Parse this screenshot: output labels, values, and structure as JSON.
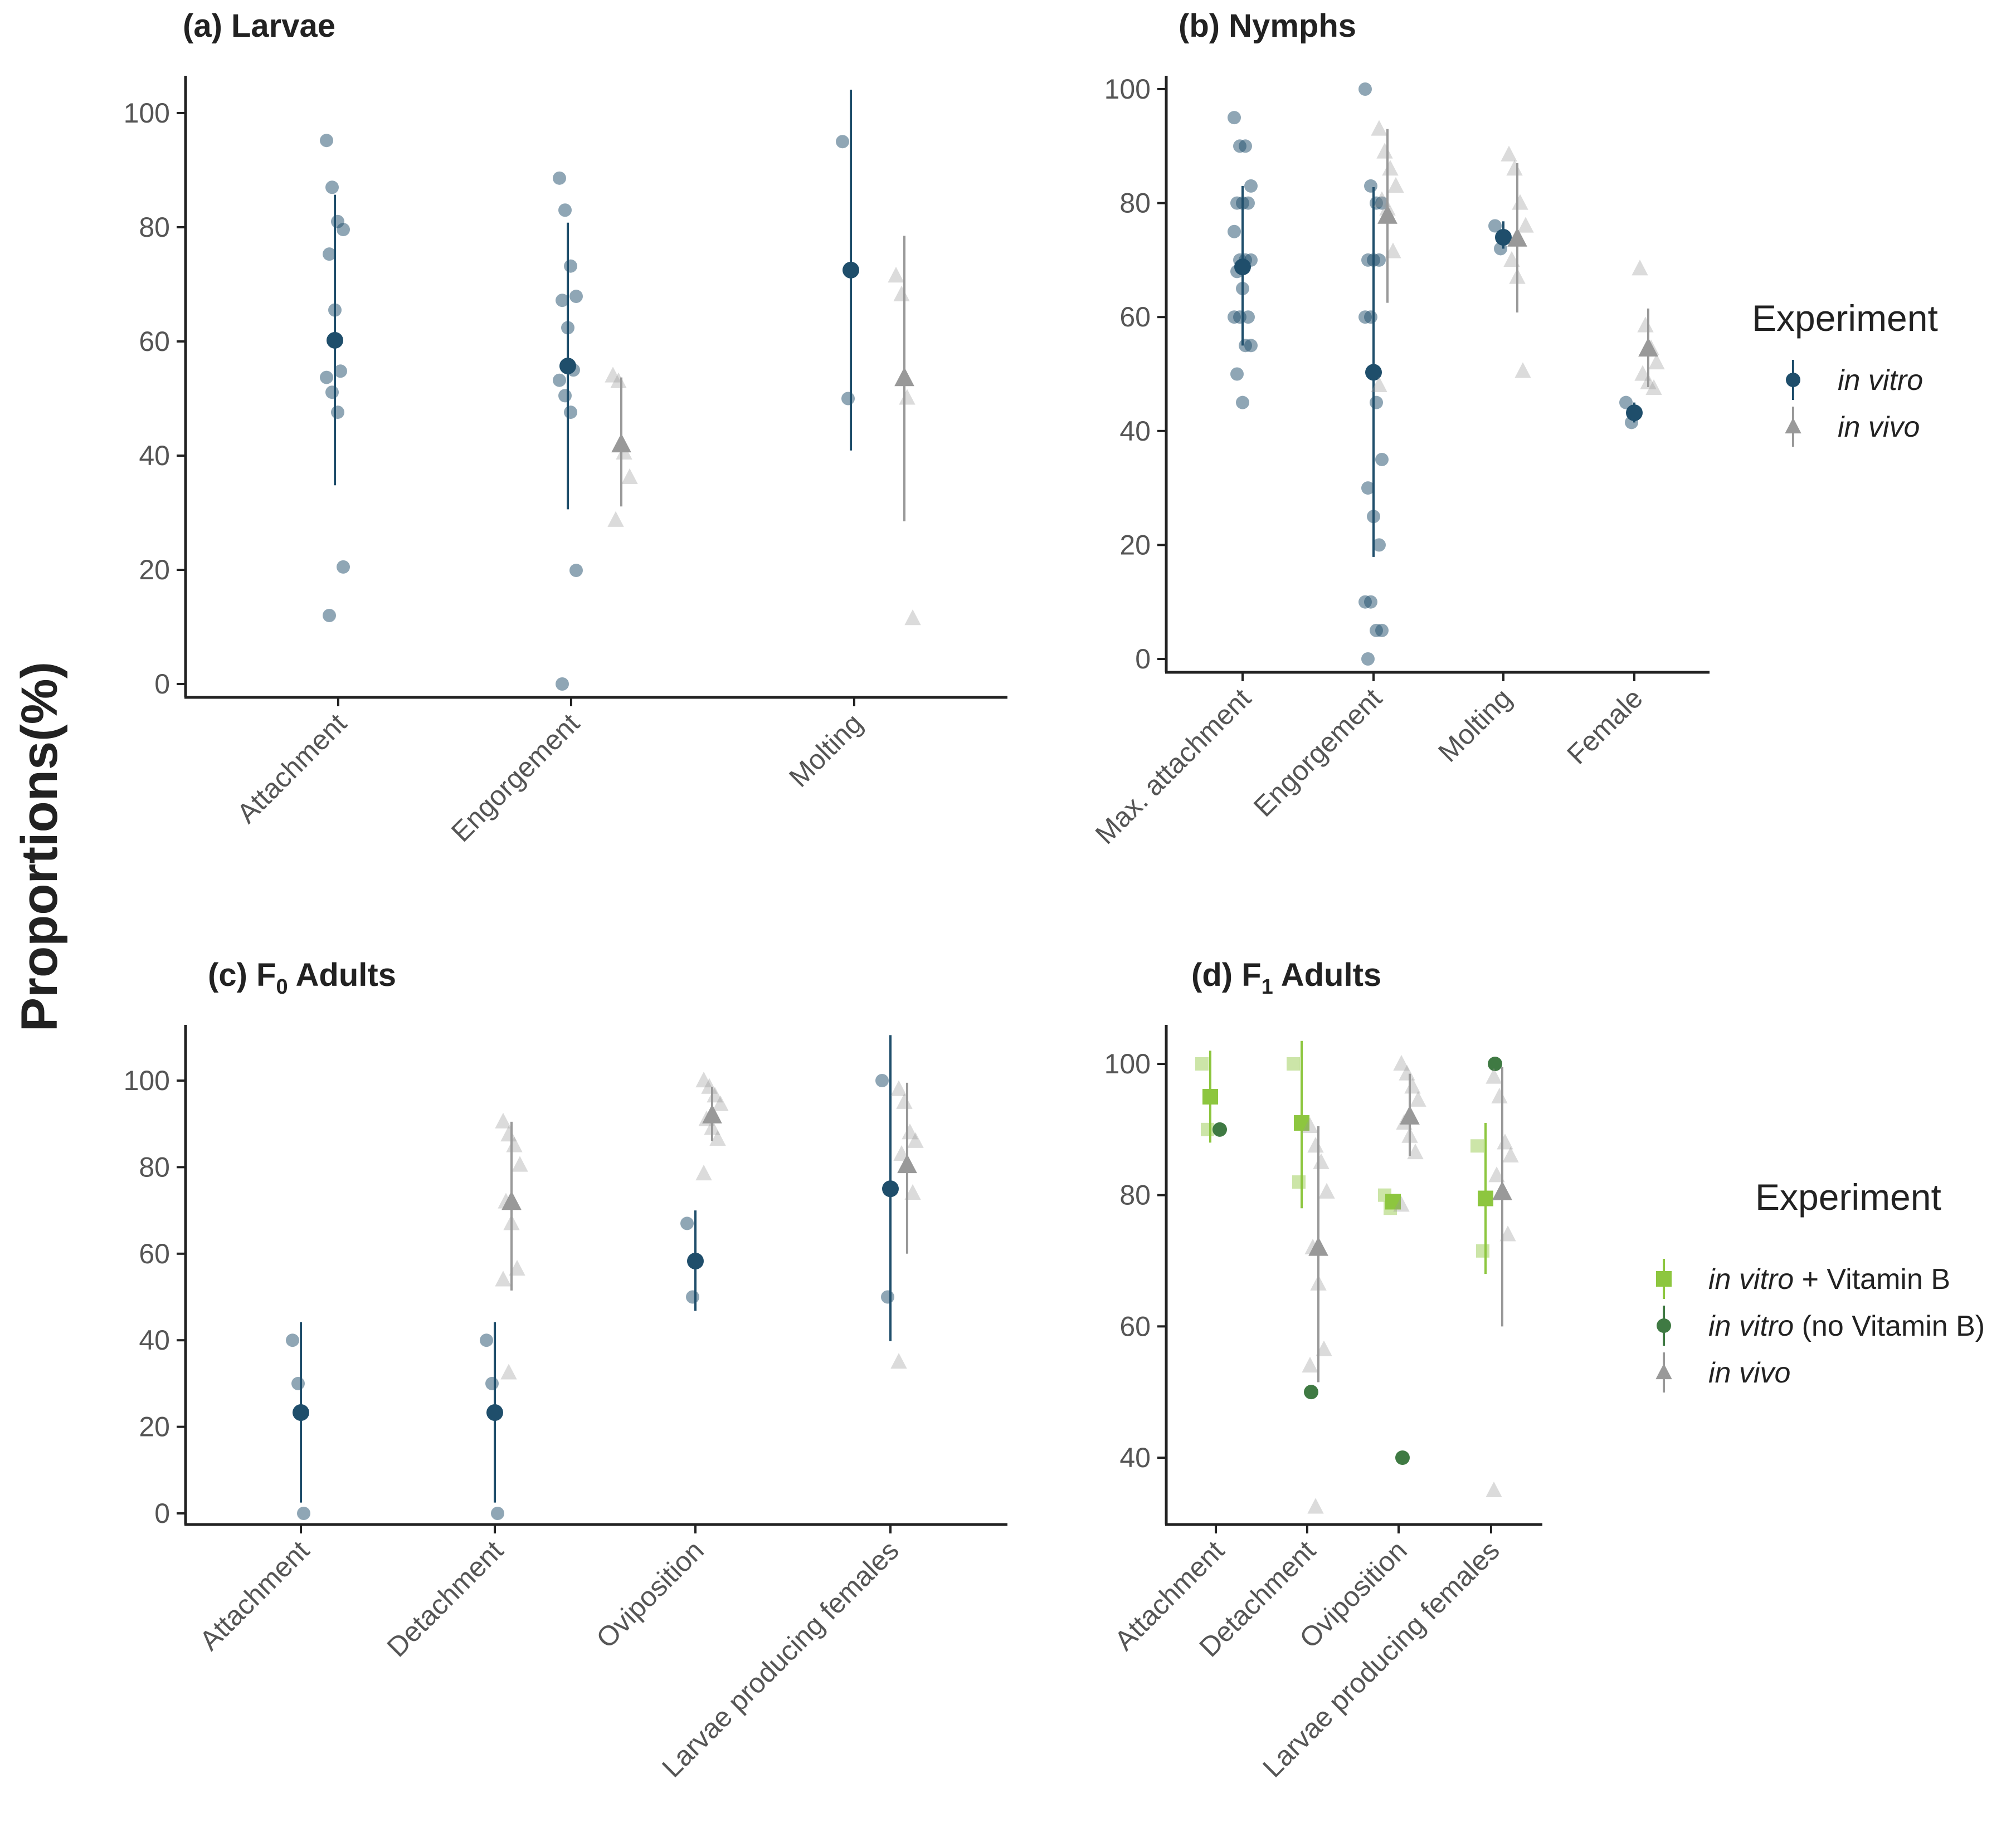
{
  "figure": {
    "ylabel": "Proportions(%)",
    "colors": {
      "in_vitro": "#1f4e6b",
      "in_vivo": "#999999",
      "in_vitro_vitB": "#8dc63f",
      "in_vitro_noVitB": "#3f7a43",
      "axis": "#222222",
      "tick_text": "#555555"
    },
    "legend1": {
      "title": "Experiment",
      "items": [
        {
          "key": "in_vitro",
          "label": "in vitro",
          "marker": "circle"
        },
        {
          "key": "in_vivo",
          "label": "in vivo",
          "marker": "triangle"
        }
      ]
    },
    "legend2": {
      "title": "Experiment",
      "items": [
        {
          "key": "in_vitro_vitB",
          "label_italic": "in vitro",
          "label_rest": " + Vitamin B",
          "marker": "square"
        },
        {
          "key": "in_vitro_noVitB",
          "label_italic": "in vitro",
          "label_rest": " (no Vitamin B)",
          "marker": "circle"
        },
        {
          "key": "in_vivo",
          "label_italic": "in vivo",
          "label_rest": "",
          "marker": "triangle"
        }
      ]
    }
  },
  "chart_data": [
    {
      "type": "scatter",
      "title": "(a) Larvae",
      "categories": [
        "Attachment",
        "Engorgement",
        "Molting"
      ],
      "ylim": [
        0,
        105
      ],
      "yticks": [
        0,
        20,
        40,
        60,
        80,
        100
      ],
      "series": [
        {
          "key": "in_vitro",
          "groups": [
            {
              "category": "Attachment",
              "mean": 60.2,
              "lo": 34.8,
              "hi": 85.7,
              "points": [
                95.2,
                87.0,
                81.0,
                79.6,
                75.3,
                65.5,
                54.8,
                53.7,
                51.1,
                47.6,
                20.5,
                12.0
              ]
            },
            {
              "category": "Engorgement",
              "mean": 55.7,
              "lo": 30.6,
              "hi": 80.8,
              "points": [
                88.6,
                83.0,
                73.2,
                67.9,
                67.2,
                62.4,
                55.0,
                53.2,
                50.5,
                47.6,
                19.9,
                0.0
              ]
            },
            {
              "category": "Molting",
              "mean": 72.5,
              "lo": 40.9,
              "hi": 104.1,
              "points": [
                95.0,
                50.0
              ]
            }
          ]
        },
        {
          "key": "in_vivo",
          "groups": [
            {
              "category": "Engorgement",
              "mean": 42.0,
              "lo": 31.1,
              "hi": 53.7,
              "points": [
                54.0,
                53.0,
                40.5,
                36.2,
                28.7
              ]
            },
            {
              "category": "Molting",
              "mean": 53.6,
              "lo": 28.5,
              "hi": 78.5,
              "points": [
                71.5,
                68.2,
                50.1,
                11.5
              ]
            }
          ]
        }
      ]
    },
    {
      "type": "scatter",
      "title": "(b) Nymphs",
      "categories": [
        "Max. attachment",
        "Engorgement",
        "Molting",
        "Female"
      ],
      "ylim": [
        -2,
        102
      ],
      "yticks": [
        0,
        20,
        40,
        60,
        80,
        100
      ],
      "series": [
        {
          "key": "in_vitro",
          "groups": [
            {
              "category": "Max. attachment",
              "mean": 68.8,
              "lo": 55.0,
              "hi": 83.0,
              "points": [
                95,
                90,
                90,
                83,
                80,
                80,
                80,
                75,
                70,
                70,
                70,
                68,
                65,
                60,
                60,
                60,
                55,
                55,
                50,
                45
              ]
            },
            {
              "category": "Engorgement",
              "mean": 50.3,
              "lo": 17.9,
              "hi": 82.8,
              "points": [
                100,
                83,
                80,
                80,
                70,
                70,
                70,
                60,
                60,
                45,
                35,
                30,
                25,
                20,
                10,
                10,
                5,
                5,
                0
              ]
            },
            {
              "category": "Molting",
              "mean": 74.0,
              "lo": 72.0,
              "hi": 76.8,
              "points": [
                76.0,
                72.0
              ]
            },
            {
              "category": "Female",
              "mean": 43.2,
              "lo": 41.5,
              "hi": 45.0,
              "points": [
                45.0,
                41.5
              ]
            }
          ]
        },
        {
          "key": "in_vivo",
          "groups": [
            {
              "category": "Engorgement",
              "mean": 77.8,
              "lo": 62.5,
              "hi": 93.0,
              "points": [
                93.0,
                89.0,
                86.0,
                83.0,
                80.5,
                79.0,
                71.5,
                48.0
              ]
            },
            {
              "category": "Molting",
              "mean": 73.8,
              "lo": 60.8,
              "hi": 87.0,
              "points": [
                88.5,
                86.0,
                80.0,
                76.0,
                70.0,
                67.0,
                50.5
              ]
            },
            {
              "category": "Female",
              "mean": 54.5,
              "lo": 47.7,
              "hi": 61.5,
              "points": [
                68.5,
                58.5,
                54.5,
                52.0,
                50.0,
                48.5,
                47.5
              ]
            }
          ]
        }
      ]
    },
    {
      "type": "scatter",
      "title": "(c) F0 Adults",
      "title_main": "(c) F",
      "title_sub": "0",
      "title_rest": " Adults",
      "categories": [
        "Attachment",
        "Detachment",
        "Oviposition",
        "Larvae  producing females"
      ],
      "ylim": [
        -2.5,
        112.5
      ],
      "yticks": [
        0,
        20,
        40,
        60,
        80,
        100
      ],
      "series": [
        {
          "key": "in_vitro",
          "groups": [
            {
              "category": "Attachment",
              "mean": 23.3,
              "lo": 2.5,
              "hi": 44.2,
              "points": [
                40,
                30,
                0
              ]
            },
            {
              "category": "Detachment",
              "mean": 23.3,
              "lo": 2.5,
              "hi": 44.2,
              "points": [
                40,
                30,
                0
              ]
            },
            {
              "category": "Oviposition",
              "mean": 58.3,
              "lo": 46.8,
              "hi": 70.0,
              "points": [
                67,
                50
              ]
            },
            {
              "category": "Larvae  producing females",
              "mean": 75.0,
              "lo": 39.8,
              "hi": 110.5,
              "points": [
                100,
                50
              ]
            }
          ]
        },
        {
          "key": "in_vivo",
          "groups": [
            {
              "category": "Detachment",
              "mean": 72.0,
              "lo": 51.5,
              "hi": 90.5,
              "points": [
                90.5,
                87.5,
                85.0,
                80.5,
                72.0,
                67.0,
                56.5,
                54.0,
                32.5
              ]
            },
            {
              "category": "Oviposition",
              "mean": 92.0,
              "lo": 86.0,
              "hi": 98.5,
              "points": [
                100,
                98.5,
                96.5,
                94.5,
                91.0,
                89.0,
                86.5,
                78.5
              ]
            },
            {
              "category": "Larvae  producing females",
              "mean": 80.5,
              "lo": 60.0,
              "hi": 99.5,
              "points": [
                98.0,
                95.0,
                88.0,
                86.0,
                83.0,
                80.5,
                74.0,
                35.0
              ]
            }
          ]
        }
      ]
    },
    {
      "type": "scatter",
      "title": "(d) F1 Adults",
      "title_main": "(d) F",
      "title_sub": "1",
      "title_rest": " Adults",
      "categories": [
        "Attachment",
        "Detachment",
        "Oviposition",
        "Larvae  producing females"
      ],
      "ylim": [
        30.5,
        105.5
      ],
      "yticks": [
        40,
        60,
        80,
        100
      ],
      "series": [
        {
          "key": "in_vitro_vitB",
          "groups": [
            {
              "category": "Attachment",
              "mean": 95.0,
              "lo": 88.0,
              "hi": 102.0,
              "points": [
                100,
                90
              ]
            },
            {
              "category": "Detachment",
              "mean": 91.0,
              "lo": 78.0,
              "hi": 103.5,
              "points": [
                100,
                82
              ]
            },
            {
              "category": "Oviposition",
              "mean": 79.0,
              "lo": 78.0,
              "hi": 80.0,
              "points": [
                80,
                78
              ]
            },
            {
              "category": "Larvae  producing females",
              "mean": 79.5,
              "lo": 68.0,
              "hi": 91.0,
              "points": [
                87.5,
                71.5
              ]
            }
          ]
        },
        {
          "key": "in_vitro_noVitB",
          "groups": [
            {
              "category": "Attachment",
              "mean": null,
              "lo": null,
              "hi": null,
              "points": [
                90
              ]
            },
            {
              "category": "Detachment",
              "mean": null,
              "lo": null,
              "hi": null,
              "points": [
                50
              ]
            },
            {
              "category": "Oviposition",
              "mean": null,
              "lo": null,
              "hi": null,
              "points": [
                40
              ]
            },
            {
              "category": "Larvae  producing females",
              "mean": null,
              "lo": null,
              "hi": null,
              "points": [
                100
              ]
            }
          ]
        },
        {
          "key": "in_vivo",
          "groups": [
            {
              "category": "Detachment",
              "mean": 72.0,
              "lo": 51.5,
              "hi": 90.5,
              "points": [
                90.5,
                87.5,
                85.0,
                80.5,
                72.0,
                66.5,
                56.5,
                54.0,
                32.5
              ]
            },
            {
              "category": "Oviposition",
              "mean": 92.0,
              "lo": 86.0,
              "hi": 98.5,
              "points": [
                100,
                98.5,
                96.5,
                94.5,
                91.0,
                89.0,
                86.5,
                78.5
              ]
            },
            {
              "category": "Larvae  producing females",
              "mean": 80.5,
              "lo": 60.0,
              "hi": 99.5,
              "points": [
                98.0,
                95.0,
                88.0,
                86.0,
                83.0,
                80.5,
                74.0,
                35.0
              ]
            }
          ]
        }
      ]
    }
  ]
}
